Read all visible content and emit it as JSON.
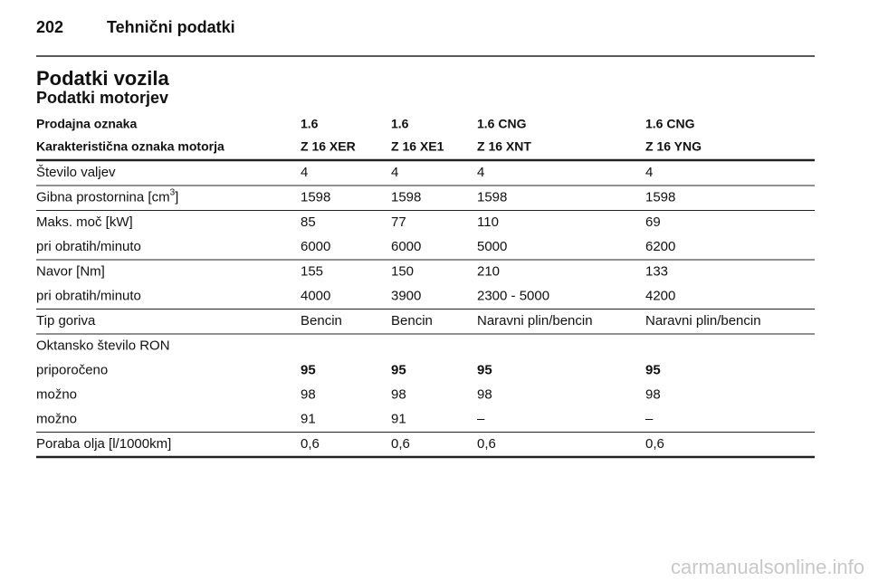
{
  "header": {
    "page": "202",
    "title": "Tehnični podatki"
  },
  "section_title": "Podatki vozila",
  "subsection_title": "Podatki motorjev",
  "table": {
    "head": [
      [
        "Prodajna oznaka",
        "1.6",
        "1.6",
        "1.6 CNG",
        "1.6 CNG"
      ],
      [
        "Karakteristična oznaka motorja",
        "Z 16 XER",
        "Z 16 XE1",
        "Z 16 XNT",
        "Z 16 YNG"
      ]
    ],
    "groups": [
      [
        {
          "cells": [
            "Število valjev",
            "4",
            "4",
            "4",
            "4"
          ]
        }
      ],
      [
        {
          "cells": [
            {
              "text": "Gibna prostornina [cm",
              "sup": "3",
              "tail": "]"
            },
            "1598",
            "1598",
            "1598",
            "1598"
          ]
        }
      ],
      [
        {
          "cells": [
            "Maks. moč [kW]",
            "85",
            "77",
            "110",
            "69"
          ]
        },
        {
          "cells": [
            "pri obratih/minuto",
            "6000",
            "6000",
            "5000",
            "6200"
          ]
        }
      ],
      [
        {
          "cells": [
            "Navor [Nm]",
            "155",
            "150",
            "210",
            "133"
          ]
        },
        {
          "cells": [
            "pri obratih/minuto",
            "4000",
            "3900",
            "2300 - 5000",
            "4200"
          ]
        }
      ],
      [
        {
          "cells": [
            "Tip goriva",
            "Bencin",
            "Bencin",
            "Naravni plin/bencin",
            "Naravni plin/bencin"
          ]
        }
      ],
      [
        {
          "cells": [
            "Oktansko število RON"
          ]
        },
        {
          "cells": [
            "priporočeno",
            "95",
            "95",
            "95",
            "95"
          ],
          "bold_values": true
        },
        {
          "cells": [
            "možno",
            "98",
            "98",
            "98",
            "98"
          ]
        },
        {
          "cells": [
            "možno",
            "91",
            "91",
            "–",
            "–"
          ]
        }
      ],
      [
        {
          "cells": [
            "Poraba olja [l/1000km]",
            "0,6",
            "0,6",
            "0,6",
            "0,6"
          ]
        }
      ]
    ]
  },
  "watermark": "carmanualsonline.info"
}
